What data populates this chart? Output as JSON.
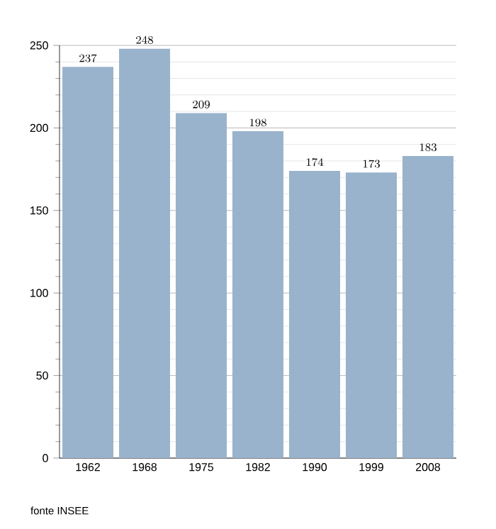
{
  "chart_data": {
    "type": "bar",
    "categories": [
      "1962",
      "1968",
      "1975",
      "1982",
      "1990",
      "1999",
      "2008"
    ],
    "values": [
      237,
      248,
      209,
      198,
      174,
      173,
      183
    ],
    "color": "#9ab3cc",
    "ylim": [
      0,
      250
    ],
    "yticks": [
      0,
      50,
      100,
      150,
      200,
      250
    ],
    "grid": "y",
    "data_labels": true,
    "annotations": [
      "fonte INSEE"
    ]
  }
}
